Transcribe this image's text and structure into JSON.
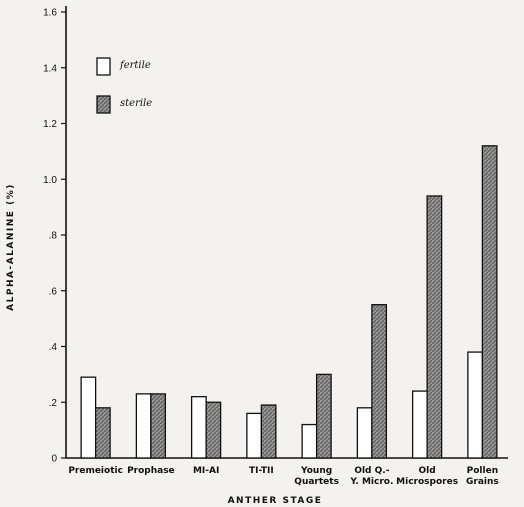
{
  "chart_data": {
    "type": "bar",
    "categories": [
      [
        "Premeiotic"
      ],
      [
        "Prophase"
      ],
      [
        "MI-AI"
      ],
      [
        "TI-TII"
      ],
      [
        "Young",
        "Quartets"
      ],
      [
        "Old Q.-",
        "Y. Micro."
      ],
      [
        "Old",
        "Microspores"
      ],
      [
        "Pollen",
        "Grains"
      ]
    ],
    "series": [
      {
        "name": "fertile",
        "values": [
          0.29,
          0.23,
          0.22,
          0.16,
          0.12,
          0.18,
          0.24,
          0.38
        ]
      },
      {
        "name": "sterile",
        "values": [
          0.18,
          0.23,
          0.2,
          0.19,
          0.3,
          0.55,
          0.94,
          1.12
        ]
      }
    ],
    "xlabel": "ANTHER STAGE",
    "ylabel": "ALPHA-ALANINE (%)",
    "ylim": [
      0,
      1.6
    ],
    "yticks": [
      "0",
      ".2",
      ".4",
      ".6",
      ".8",
      "1.0",
      "1.2",
      "1.4",
      "1.6"
    ],
    "ytick_values": [
      0,
      0.2,
      0.4,
      0.6,
      0.8,
      1.0,
      1.2,
      1.4,
      1.6
    ],
    "grid": false,
    "legend_position": "top-left",
    "colors": {
      "fertile": "#ffffff",
      "sterile": "#8f8f8f",
      "ink": "#111111"
    }
  }
}
